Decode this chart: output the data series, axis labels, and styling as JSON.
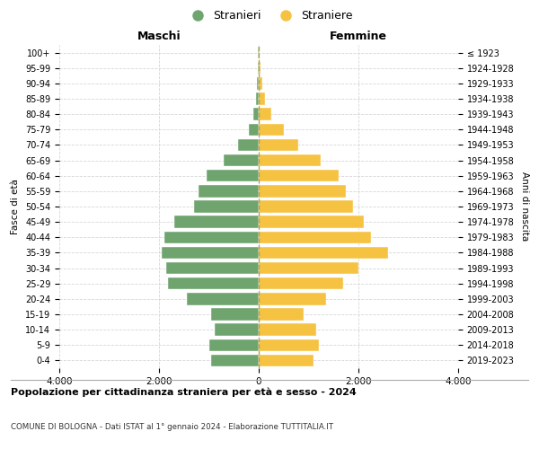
{
  "age_groups": [
    "0-4",
    "5-9",
    "10-14",
    "15-19",
    "20-24",
    "25-29",
    "30-34",
    "35-39",
    "40-44",
    "45-49",
    "50-54",
    "55-59",
    "60-64",
    "65-69",
    "70-74",
    "75-79",
    "80-84",
    "85-89",
    "90-94",
    "95-99",
    "100+"
  ],
  "birth_years": [
    "2019-2023",
    "2014-2018",
    "2009-2013",
    "2004-2008",
    "1999-2003",
    "1994-1998",
    "1989-1993",
    "1984-1988",
    "1979-1983",
    "1974-1978",
    "1969-1973",
    "1964-1968",
    "1959-1963",
    "1954-1958",
    "1949-1953",
    "1944-1948",
    "1939-1943",
    "1934-1938",
    "1929-1933",
    "1924-1928",
    "≤ 1923"
  ],
  "maschi": [
    950,
    1000,
    880,
    950,
    1450,
    1820,
    1850,
    1950,
    1900,
    1700,
    1300,
    1200,
    1050,
    700,
    420,
    200,
    100,
    60,
    30,
    15,
    10
  ],
  "femmine": [
    1100,
    1200,
    1150,
    900,
    1350,
    1700,
    2000,
    2600,
    2250,
    2100,
    1900,
    1750,
    1600,
    1250,
    800,
    500,
    250,
    130,
    80,
    30,
    20
  ],
  "maschi_color": "#6fa46f",
  "femmine_color": "#f5c242",
  "dashed_color": "#b8a050",
  "background_color": "#ffffff",
  "grid_color": "#cccccc",
  "title": "Popolazione per cittadinanza straniera per età e sesso - 2024",
  "subtitle1": "COMUNE DI BOLOGNA - Dati ISTAT al 1° gennaio 2024 - Elaborazione TUTTITALIA.IT",
  "xlabel_left": "Maschi",
  "xlabel_right": "Femmine",
  "ylabel_left": "Fasce di età",
  "ylabel_right": "Anni di nascita",
  "legend_maschi": "Stranieri",
  "legend_femmine": "Straniere",
  "xlim": 4000
}
